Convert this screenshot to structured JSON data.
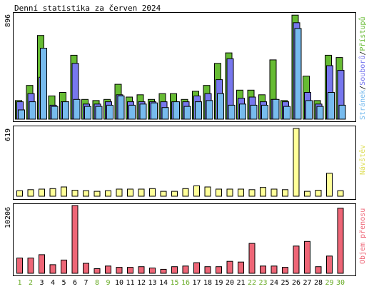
{
  "title": "Denní statistika za červen 2024",
  "colors": {
    "pristupu": "#66bb33",
    "souboru": "#7777ee",
    "stranek": "#77bbee",
    "navstev": "#ffff99",
    "objem": "#ee6677",
    "weekend_label": "#66aa22",
    "weekday_label": "#000000",
    "outline": "#000000"
  },
  "chart_data": [
    {
      "type": "bar",
      "panel": "top",
      "ytick": "896",
      "ylim": [
        0,
        896
      ],
      "legend": [
        "Přístupů",
        "Souborů",
        "Stránek"
      ],
      "legend_separator": "/",
      "legend_placement": "right-vertical",
      "categories": [
        "1",
        "2",
        "3",
        "4",
        "5",
        "6",
        "7",
        "8",
        "9",
        "10",
        "11",
        "12",
        "13",
        "14",
        "15",
        "16",
        "17",
        "18",
        "19",
        "20",
        "21",
        "22",
        "23",
        "24",
        "25",
        "26",
        "27",
        "28",
        "29",
        "30"
      ],
      "series": [
        {
          "name": "Přístupů",
          "values": [
            160,
            290,
            720,
            200,
            230,
            550,
            170,
            160,
            170,
            300,
            190,
            210,
            170,
            220,
            220,
            170,
            240,
            290,
            480,
            570,
            250,
            250,
            210,
            510,
            160,
            895,
            370,
            160,
            550,
            530
          ]
        },
        {
          "name": "Souborů",
          "values": [
            150,
            220,
            360,
            120,
            150,
            480,
            130,
            130,
            150,
            210,
            150,
            150,
            150,
            150,
            150,
            150,
            200,
            220,
            340,
            520,
            180,
            190,
            150,
            170,
            150,
            830,
            230,
            130,
            460,
            420
          ]
        },
        {
          "name": "Stránek",
          "values": [
            80,
            150,
            610,
            110,
            150,
            170,
            110,
            110,
            120,
            200,
            120,
            130,
            140,
            100,
            150,
            110,
            150,
            160,
            220,
            120,
            130,
            120,
            120,
            170,
            110,
            780,
            160,
            110,
            230,
            120
          ]
        }
      ]
    },
    {
      "type": "bar",
      "panel": "middle",
      "ytick": "619",
      "ylim": [
        0,
        619
      ],
      "legend": [
        "Návštěv"
      ],
      "categories": [
        "1",
        "2",
        "3",
        "4",
        "5",
        "6",
        "7",
        "8",
        "9",
        "10",
        "11",
        "12",
        "13",
        "14",
        "15",
        "16",
        "17",
        "18",
        "19",
        "20",
        "21",
        "22",
        "23",
        "24",
        "25",
        "26",
        "27",
        "28",
        "29",
        "30"
      ],
      "series": [
        {
          "name": "Návštěv",
          "values": [
            50,
            60,
            65,
            70,
            85,
            55,
            50,
            45,
            50,
            65,
            65,
            65,
            70,
            45,
            45,
            70,
            95,
            85,
            65,
            65,
            65,
            60,
            80,
            65,
            60,
            619,
            45,
            55,
            210,
            50
          ]
        }
      ]
    },
    {
      "type": "bar",
      "panel": "bottom",
      "ytick": "10206",
      "ylim": [
        0,
        10206
      ],
      "legend": [
        "Objem přenosu"
      ],
      "categories": [
        "1",
        "2",
        "3",
        "4",
        "5",
        "6",
        "7",
        "8",
        "9",
        "10",
        "11",
        "12",
        "13",
        "14",
        "15",
        "16",
        "17",
        "18",
        "19",
        "20",
        "21",
        "22",
        "23",
        "24",
        "25",
        "26",
        "27",
        "28",
        "29",
        "30"
      ],
      "series": [
        {
          "name": "Objem přenosu",
          "values": [
            2300,
            2300,
            2800,
            1300,
            2000,
            10206,
            1500,
            700,
            1100,
            900,
            900,
            1000,
            800,
            600,
            1000,
            1100,
            1600,
            1000,
            1000,
            1800,
            1700,
            4500,
            1100,
            1100,
            900,
            4100,
            4800,
            1000,
            2600,
            9800
          ]
        }
      ]
    }
  ]
}
